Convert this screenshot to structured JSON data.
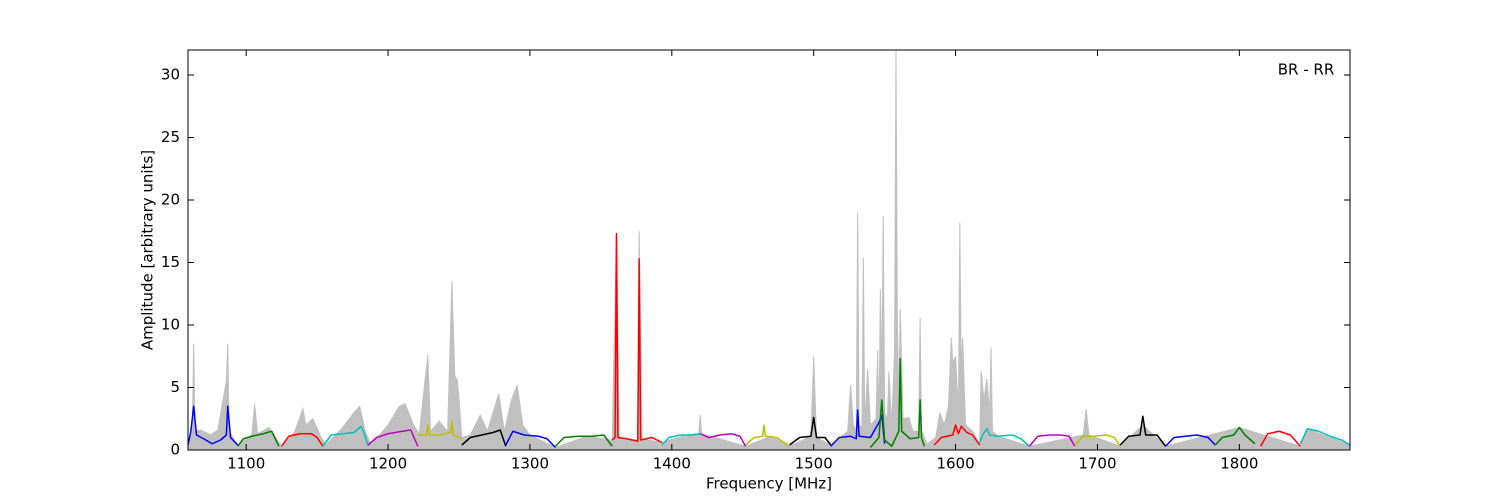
{
  "chart_data": {
    "type": "line",
    "annotation": "BR - RR",
    "x_label": "Frequency [MHz]",
    "y_label": "Amplitude [arbitrary units]",
    "xlim": [
      1059,
      1878
    ],
    "ylim": [
      0,
      32
    ],
    "xticks": [
      1100,
      1200,
      1300,
      1400,
      1500,
      1600,
      1700,
      1800
    ],
    "yticks": [
      0,
      5,
      10,
      15,
      20,
      25,
      30
    ],
    "background": {
      "color": "#c0c0c0",
      "x": [
        1059,
        1062,
        1063,
        1064,
        1068,
        1075,
        1080,
        1086,
        1087,
        1088,
        1094,
        1104,
        1106,
        1108,
        1116,
        1125,
        1134,
        1140,
        1142,
        1147,
        1152,
        1156,
        1168,
        1176,
        1180,
        1184,
        1188,
        1200,
        1208,
        1212,
        1218,
        1222,
        1228,
        1230,
        1236,
        1242,
        1245,
        1247,
        1249,
        1252,
        1258,
        1265,
        1270,
        1274,
        1278,
        1282,
        1287,
        1291,
        1295,
        1300,
        1318,
        1340,
        1358,
        1361,
        1363,
        1376,
        1377,
        1379,
        1393,
        1410,
        1419,
        1420,
        1421,
        1452,
        1470,
        1483,
        1498,
        1500,
        1502,
        1512,
        1524,
        1526,
        1528,
        1530,
        1531,
        1532,
        1534,
        1535,
        1536,
        1538,
        1540,
        1544,
        1545,
        1546,
        1547,
        1548,
        1549,
        1550,
        1552,
        1553,
        1555,
        1557,
        1558,
        1559,
        1560,
        1561,
        1563,
        1567,
        1570,
        1574,
        1575,
        1576,
        1580,
        1586,
        1589,
        1592,
        1595,
        1597,
        1598,
        1600,
        1602,
        1603,
        1604,
        1605,
        1607,
        1612,
        1617,
        1618,
        1620,
        1622,
        1624,
        1625,
        1626,
        1630,
        1652,
        1690,
        1692,
        1694,
        1716,
        1732,
        1748,
        1800,
        1843,
        1848,
        1878
      ],
      "values": [
        0.5,
        1.5,
        8.5,
        1.5,
        1.6,
        1.2,
        1.6,
        5.5,
        8.5,
        1.5,
        0.4,
        1.2,
        3.7,
        1.3,
        1.8,
        0.3,
        1.4,
        3.3,
        2.0,
        2.5,
        1.2,
        0.4,
        1.8,
        3.0,
        3.5,
        1.5,
        0.4,
        2.0,
        3.5,
        3.7,
        2.0,
        1.3,
        7.6,
        1.5,
        2.3,
        1.5,
        13.5,
        6.0,
        5.5,
        1.0,
        1.2,
        2.8,
        1.5,
        3.0,
        4.5,
        1.5,
        4.0,
        5.2,
        2.0,
        1.2,
        0.2,
        1.1,
        0.8,
        17.3,
        1.0,
        0.8,
        17.5,
        0.9,
        0.6,
        1.2,
        1.3,
        2.8,
        1.3,
        0.3,
        1.1,
        0.3,
        1.1,
        7.5,
        1.0,
        0.4,
        1.5,
        5.2,
        2.0,
        1.5,
        19.0,
        2.0,
        1.8,
        15.4,
        2.0,
        6.5,
        2.0,
        2.5,
        8.0,
        2.0,
        12.9,
        5.0,
        18.7,
        3.0,
        2.5,
        6.3,
        2.0,
        8.0,
        32.0,
        10.0,
        4.0,
        11.3,
        2.5,
        2.6,
        1.5,
        1.5,
        10.6,
        1.5,
        0.5,
        1.0,
        3.0,
        2.0,
        3.5,
        9.0,
        7.0,
        7.5,
        3.0,
        18.2,
        6.0,
        9.0,
        2.0,
        1.5,
        0.5,
        6.3,
        4.0,
        5.7,
        3.0,
        8.2,
        1.5,
        1.1,
        0.3,
        1.2,
        3.3,
        1.2,
        0.3,
        2.0,
        0.3,
        1.8,
        0.3,
        1.7,
        0.4
      ]
    },
    "series": [
      {
        "color": "#0000ff",
        "x": [
          1059,
          1061,
          1063,
          1065,
          1070,
          1076,
          1082,
          1086,
          1087,
          1089,
          1094
        ],
        "values": [
          0.4,
          1.5,
          3.5,
          1.2,
          0.9,
          0.5,
          0.8,
          1.2,
          3.5,
          1.0,
          0.4
        ]
      },
      {
        "color": "#008000",
        "x": [
          1094,
          1098,
          1104,
          1112,
          1118,
          1123
        ],
        "values": [
          0.3,
          0.9,
          1.1,
          1.3,
          1.5,
          0.3
        ]
      },
      {
        "color": "#ff0000",
        "x": [
          1125,
          1130,
          1138,
          1146,
          1150,
          1154
        ],
        "values": [
          0.3,
          1.1,
          1.3,
          1.3,
          1.0,
          0.3
        ]
      },
      {
        "color": "#00bfbf",
        "x": [
          1154,
          1160,
          1168,
          1176,
          1181,
          1183,
          1186
        ],
        "values": [
          0.3,
          1.2,
          1.3,
          1.4,
          1.9,
          1.4,
          0.3
        ]
      },
      {
        "color": "#bf00bf",
        "x": [
          1186,
          1192,
          1200,
          1210,
          1216,
          1221
        ],
        "values": [
          0.4,
          1.0,
          1.3,
          1.5,
          1.6,
          0.3
        ]
      },
      {
        "color": "#bfbf00",
        "x": [
          1221,
          1227,
          1228,
          1229,
          1236,
          1244,
          1245,
          1246,
          1252
        ],
        "values": [
          1.2,
          1.2,
          2.0,
          1.2,
          1.2,
          1.4,
          2.3,
          1.2,
          0.9
        ]
      },
      {
        "color": "#000000",
        "x": [
          1252,
          1258,
          1266,
          1274,
          1279,
          1283
        ],
        "values": [
          0.4,
          1.0,
          1.2,
          1.4,
          1.6,
          0.3
        ]
      },
      {
        "color": "#0000ff",
        "x": [
          1283,
          1288,
          1296,
          1306,
          1312,
          1318
        ],
        "values": [
          0.4,
          1.5,
          1.2,
          1.1,
          0.9,
          0.2
        ]
      },
      {
        "color": "#008000",
        "x": [
          1318,
          1324,
          1334,
          1344,
          1352,
          1358
        ],
        "values": [
          0.3,
          1.0,
          1.1,
          1.1,
          1.2,
          0.3
        ]
      },
      {
        "color": "#ff0000",
        "x": [
          1358,
          1360,
          1361,
          1362,
          1368,
          1376,
          1377,
          1378,
          1386,
          1393
        ],
        "values": [
          0.8,
          1.0,
          17.3,
          1.0,
          0.9,
          0.7,
          15.3,
          0.8,
          1.0,
          0.6
        ]
      },
      {
        "color": "#00bfbf",
        "x": [
          1393,
          1398,
          1406,
          1414,
          1420
        ],
        "values": [
          0.4,
          1.0,
          1.2,
          1.2,
          1.3
        ]
      },
      {
        "color": "#bf00bf",
        "x": [
          1420,
          1426,
          1434,
          1442,
          1448,
          1452
        ],
        "values": [
          1.3,
          1.0,
          1.2,
          1.3,
          1.1,
          0.3
        ]
      },
      {
        "color": "#bfbf00",
        "x": [
          1452,
          1458,
          1464,
          1465,
          1466,
          1474,
          1483
        ],
        "values": [
          0.4,
          1.0,
          1.1,
          2.0,
          1.1,
          1.0,
          0.3
        ]
      },
      {
        "color": "#000000",
        "x": [
          1483,
          1490,
          1498,
          1500,
          1502,
          1508,
          1512
        ],
        "values": [
          0.4,
          1.0,
          1.1,
          2.6,
          1.0,
          1.0,
          0.4
        ]
      },
      {
        "color": "#0000ff",
        "x": [
          1512,
          1518,
          1526,
          1530,
          1531,
          1532,
          1540,
          1546,
          1548,
          1550
        ],
        "values": [
          0.3,
          1.0,
          1.1,
          0.9,
          3.2,
          1.1,
          1.0,
          2.2,
          2.8,
          0.5
        ]
      },
      {
        "color": "#008000",
        "x": [
          1540,
          1546,
          1548,
          1550,
          1555,
          1560,
          1561,
          1562,
          1568,
          1574,
          1575,
          1576,
          1578
        ],
        "values": [
          0.2,
          1.0,
          4.0,
          0.8,
          0.3,
          1.5,
          7.3,
          1.5,
          0.9,
          1.0,
          4.0,
          1.0,
          0.3
        ]
      },
      {
        "color": "#ff0000",
        "x": [
          1585,
          1590,
          1598,
          1600,
          1602,
          1604,
          1608,
          1612,
          1617
        ],
        "values": [
          0.4,
          1.0,
          1.2,
          2.0,
          1.3,
          1.9,
          1.4,
          1.2,
          0.4
        ]
      },
      {
        "color": "#00bfbf",
        "x": [
          1617,
          1619,
          1622,
          1624,
          1630,
          1640,
          1646,
          1652
        ],
        "values": [
          0.6,
          1.2,
          1.7,
          1.2,
          1.1,
          1.2,
          0.9,
          0.3
        ]
      },
      {
        "color": "#bf00bf",
        "x": [
          1652,
          1658,
          1666,
          1674,
          1680,
          1684
        ],
        "values": [
          0.3,
          1.1,
          1.2,
          1.2,
          1.1,
          0.3
        ]
      },
      {
        "color": "#bfbf00",
        "x": [
          1684,
          1690,
          1698,
          1706,
          1712,
          1716
        ],
        "values": [
          0.4,
          1.1,
          1.1,
          1.2,
          1.0,
          0.3
        ]
      },
      {
        "color": "#000000",
        "x": [
          1716,
          1722,
          1730,
          1732,
          1734,
          1742,
          1748
        ],
        "values": [
          0.4,
          1.1,
          1.2,
          2.7,
          1.2,
          1.2,
          0.3
        ]
      },
      {
        "color": "#0000ff",
        "x": [
          1748,
          1754,
          1762,
          1770,
          1778,
          1783
        ],
        "values": [
          0.3,
          1.0,
          1.1,
          1.2,
          1.0,
          0.4
        ]
      },
      {
        "color": "#008000",
        "x": [
          1783,
          1788,
          1796,
          1800,
          1804,
          1811
        ],
        "values": [
          0.4,
          1.0,
          1.2,
          1.8,
          1.2,
          0.5
        ]
      },
      {
        "color": "#ff0000",
        "x": [
          1815,
          1820,
          1828,
          1836,
          1843
        ],
        "values": [
          0.3,
          1.3,
          1.5,
          1.2,
          0.3
        ]
      },
      {
        "color": "#00bfbf",
        "x": [
          1843,
          1848,
          1856,
          1864,
          1872,
          1878
        ],
        "values": [
          0.5,
          1.7,
          1.5,
          1.1,
          0.8,
          0.4
        ]
      }
    ]
  }
}
